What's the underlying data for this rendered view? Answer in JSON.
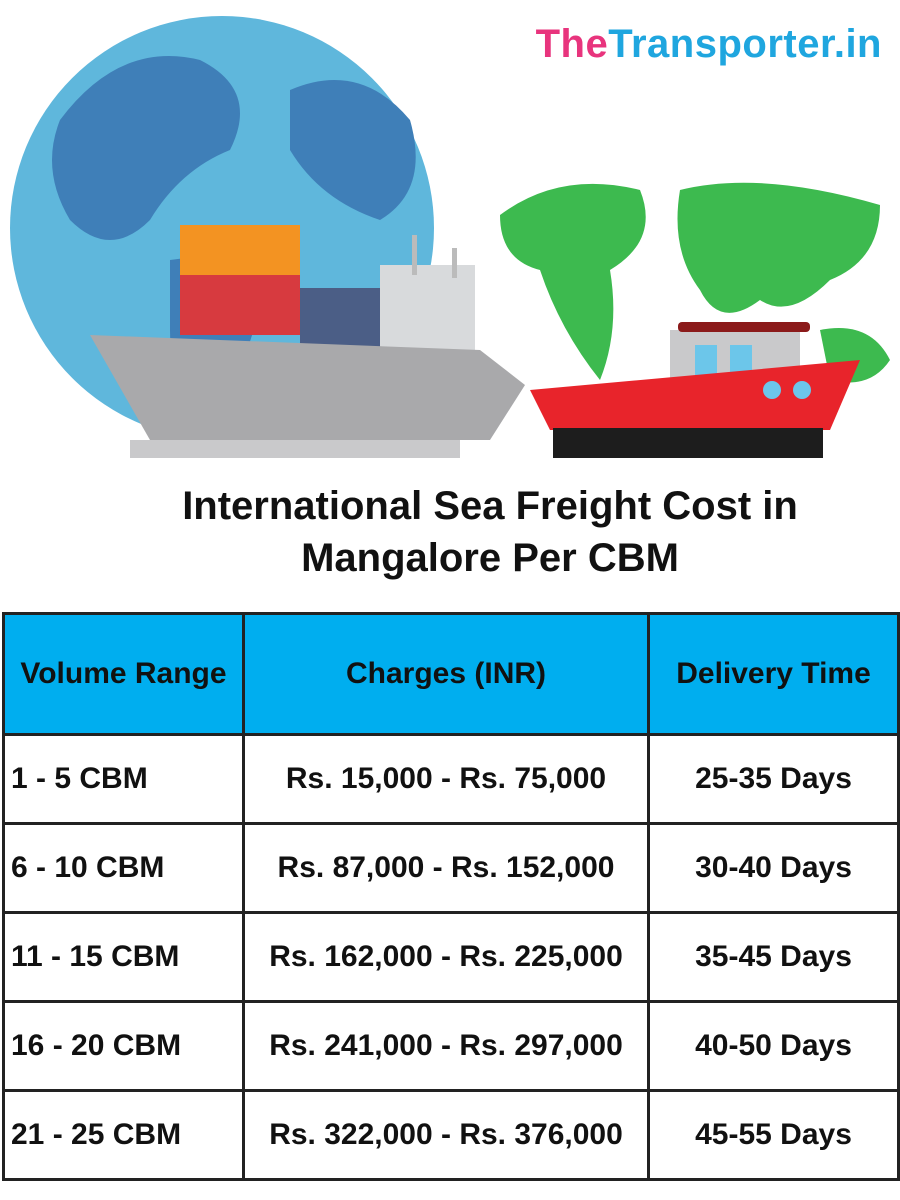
{
  "brand": {
    "prefix": "The",
    "name": "Transporter.in"
  },
  "title": [
    "International Sea Freight Cost in",
    "Mangalore Per CBM"
  ],
  "table": {
    "header": [
      "Volume Range",
      "Charges (INR)",
      "Delivery Time"
    ],
    "rows": [
      [
        "1 - 5 CBM",
        "Rs. 15,000 - Rs. 75,000",
        "25-35 Days"
      ],
      [
        "6 - 10 CBM",
        "Rs. 87,000 - Rs. 152,000",
        "30-40 Days"
      ],
      [
        "11 - 15 CBM",
        "Rs. 162,000 - Rs. 225,000",
        "35-45 Days"
      ],
      [
        "16 - 20 CBM",
        "Rs. 241,000 - Rs. 297,000",
        "40-50 Days"
      ],
      [
        "21 - 25 CBM",
        "Rs. 322,000 - Rs. 376,000",
        "45-55 Days"
      ]
    ]
  }
}
